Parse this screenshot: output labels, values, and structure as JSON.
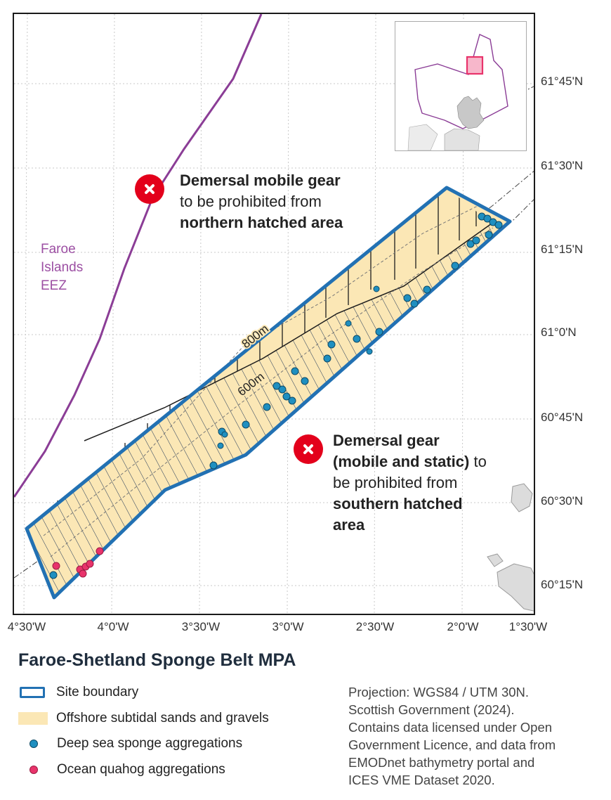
{
  "latitude_ticks": [
    "61°45'N",
    "61°30'N",
    "61°15'N",
    "61°0'N",
    "60°45'N",
    "60°30'N",
    "60°15'N"
  ],
  "longitude_ticks": [
    "4°30'W",
    "4°0'W",
    "3°30'W",
    "3°0'W",
    "2°30'W",
    "2°0'W",
    "1°30'W"
  ],
  "contours": {
    "upper": "800m",
    "lower": "600m"
  },
  "eez_label": [
    "Faroe",
    "Islands",
    "EEZ"
  ],
  "annotation_north": {
    "line1": "Demersal mobile gear",
    "line2": "to be prohibited from",
    "line3": "northern hatched area"
  },
  "annotation_south": {
    "line1_bold": "Demersal gear",
    "line2_bold": "(mobile and static)",
    "line2_rest": " to",
    "line3": "be prohibited from",
    "line4": "southern hatched",
    "line5": "area"
  },
  "title": "Faroe-Shetland Sponge Belt MPA",
  "legend": [
    {
      "label": "Site boundary",
      "symbol": "boundary"
    },
    {
      "label": "Offshore subtidal sands and gravels",
      "symbol": "sand"
    },
    {
      "label": "Deep sea sponge aggregations",
      "symbol": "dot",
      "color": "#1f8fc0"
    },
    {
      "label": "Ocean quahog aggregations",
      "symbol": "dot",
      "color": "#e8336b"
    }
  ],
  "credits": [
    "Projection: WGS84 / UTM 30N.",
    "Scottish Government (2024).",
    "Contains data licensed under Open",
    "Government Licence, and data from",
    "EMODnet bathymetry portal and",
    "ICES VME Dataset 2020."
  ],
  "colors": {
    "boundary": "#2271b3",
    "sand": "#fbe7b5",
    "sponge": "#1f8fc0",
    "quahog": "#e8336b",
    "eez": "#9c4fa3",
    "prohibit": "#e3001b",
    "inset_highlight": "#e8336b"
  }
}
